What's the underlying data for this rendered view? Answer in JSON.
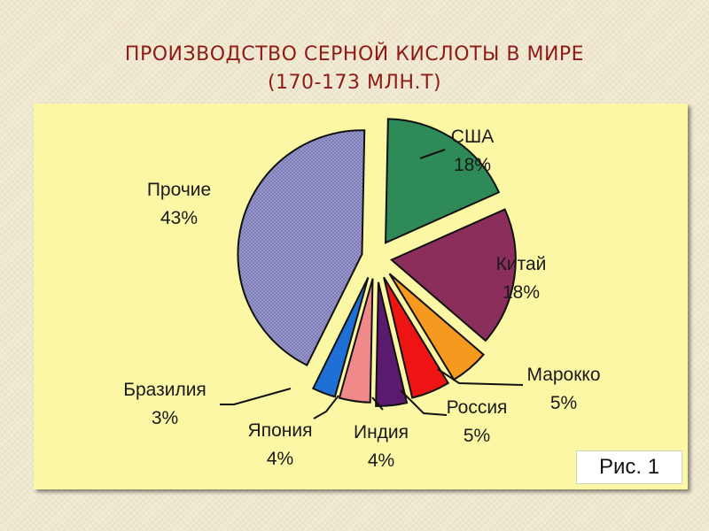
{
  "title": {
    "line1": "ПРОИЗВОДСТВО СЕРНОЙ КИСЛОТЫ В МИРЕ",
    "line2": "(170-173 МЛН.Т)"
  },
  "figure_label": "Рис. 1",
  "chart_data": {
    "type": "pie",
    "title": "ПРОИЗВОДСТВО СЕРНОЙ КИСЛОТЫ В МИРЕ (170-173 МЛН.Т)",
    "unit": "%",
    "slices": [
      {
        "label": "США",
        "value": 18,
        "value_label": "18%",
        "color": "#2e8b57"
      },
      {
        "label": "Китай",
        "value": 18,
        "value_label": "18%",
        "color": "#8b2e5c"
      },
      {
        "label": "Марокко",
        "value": 5,
        "value_label": "5%",
        "color": "#f59a1e"
      },
      {
        "label": "Россия",
        "value": 5,
        "value_label": "5%",
        "color": "#ee1414"
      },
      {
        "label": "Индия",
        "value": 4,
        "value_label": "4%",
        "color": "#5a1a6e"
      },
      {
        "label": "Япония",
        "value": 4,
        "value_label": "4%",
        "color": "#f08a8a"
      },
      {
        "label": "Бразилия",
        "value": 3,
        "value_label": "3%",
        "color": "#1f70d6"
      },
      {
        "label": "Прочие",
        "value": 43,
        "value_label": "43%",
        "color": "#9a9ad0"
      }
    ]
  }
}
